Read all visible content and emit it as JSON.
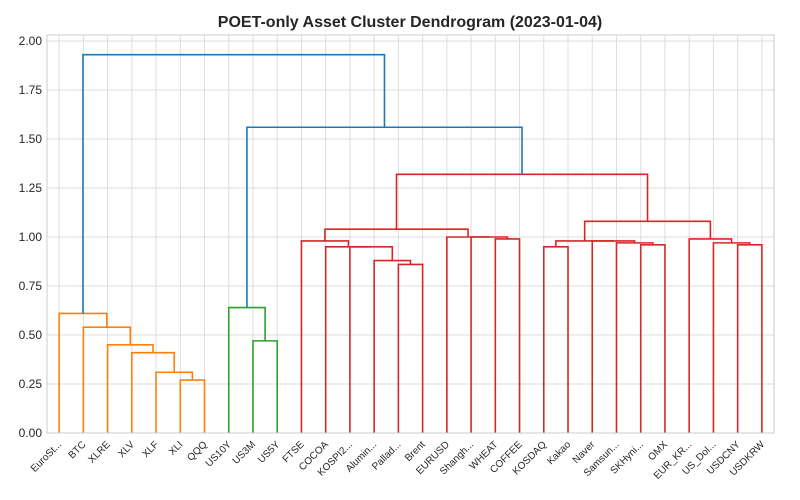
{
  "chart_data": {
    "type": "dendrogram",
    "title": "POET-only Asset Cluster Dendrogram (2023-01-04)",
    "xlabel": "",
    "ylabel": "",
    "ylim": [
      0,
      2.0
    ],
    "yticks": [
      "0.00",
      "0.25",
      "0.50",
      "0.75",
      "1.00",
      "1.25",
      "1.50",
      "1.75",
      "2.00"
    ],
    "grid": true,
    "leaves": [
      "EuroSt...",
      "BTC",
      "XLRE",
      "XLV",
      "XLF",
      "XLI",
      "QQQ",
      "US10Y",
      "US3M",
      "US5Y",
      "FTSE",
      "COCOA",
      "KOSPI2...",
      "Alumin...",
      "Pallad...",
      "Brent",
      "EURUSD",
      "Shangh...",
      "WHEAT",
      "COFFEE",
      "KOSDAQ",
      "Kakao",
      "Naver",
      "Samsun...",
      "SKHyni...",
      "OMX",
      "EUR_KR...",
      "US_Dol...",
      "USDCNY",
      "USDKRW"
    ],
    "colors": {
      "orange": "#ff7f0e",
      "green": "#2ca02c",
      "red": "#d62728",
      "blue": "#1f77b4"
    },
    "merges": [
      {
        "a": "XLI",
        "b": "QQQ",
        "height": 0.27,
        "color": "orange"
      },
      {
        "a": "XLF",
        "b": "n0",
        "height": 0.31,
        "color": "orange"
      },
      {
        "a": "XLV",
        "b": "n1",
        "height": 0.41,
        "color": "orange"
      },
      {
        "a": "XLRE",
        "b": "n2",
        "height": 0.45,
        "color": "orange"
      },
      {
        "a": "BTC",
        "b": "n3",
        "height": 0.54,
        "color": "orange"
      },
      {
        "a": "EuroSt...",
        "b": "n4",
        "height": 0.61,
        "color": "orange"
      },
      {
        "a": "US3M",
        "b": "US5Y",
        "height": 0.47,
        "color": "green"
      },
      {
        "a": "US10Y",
        "b": "n6",
        "height": 0.64,
        "color": "green"
      },
      {
        "a": "Pallad...",
        "b": "Brent",
        "height": 0.86,
        "color": "red"
      },
      {
        "a": "Alumin...",
        "b": "n8",
        "height": 0.88,
        "color": "red"
      },
      {
        "a": "KOSPI2...",
        "b": "n9",
        "height": 0.95,
        "color": "red"
      },
      {
        "a": "COCOA",
        "b": "n10",
        "height": 0.95,
        "color": "red"
      },
      {
        "a": "FTSE",
        "b": "n11",
        "height": 0.98,
        "color": "red"
      },
      {
        "a": "WHEAT",
        "b": "COFFEE",
        "height": 0.99,
        "color": "red"
      },
      {
        "a": "Shangh...",
        "b": "n13",
        "height": 1.0,
        "color": "red"
      },
      {
        "a": "EURUSD",
        "b": "n14",
        "height": 1.0,
        "color": "red"
      },
      {
        "a": "n12",
        "b": "n15",
        "height": 1.04,
        "color": "red"
      },
      {
        "a": "KOSDAQ",
        "b": "Kakao",
        "height": 0.95,
        "color": "red"
      },
      {
        "a": "SKHyni...",
        "b": "OMX",
        "height": 0.96,
        "color": "red"
      },
      {
        "a": "Samsun...",
        "b": "n18",
        "height": 0.97,
        "color": "red"
      },
      {
        "a": "Naver",
        "b": "n19",
        "height": 0.98,
        "color": "red"
      },
      {
        "a": "n17",
        "b": "n20",
        "height": 0.98,
        "color": "red"
      },
      {
        "a": "USDCNY",
        "b": "USDKRW",
        "height": 0.96,
        "color": "red"
      },
      {
        "a": "US_Dol...",
        "b": "n22",
        "height": 0.97,
        "color": "red"
      },
      {
        "a": "EUR_KR...",
        "b": "n23",
        "height": 0.99,
        "color": "red"
      },
      {
        "a": "n21",
        "b": "n24",
        "height": 1.08,
        "color": "red"
      },
      {
        "a": "n16",
        "b": "n25",
        "height": 1.32,
        "color": "red"
      },
      {
        "a": "n7",
        "b": "n26",
        "height": 1.56,
        "color": "blue"
      },
      {
        "a": "n5",
        "b": "n27",
        "height": 1.93,
        "color": "blue"
      }
    ]
  }
}
